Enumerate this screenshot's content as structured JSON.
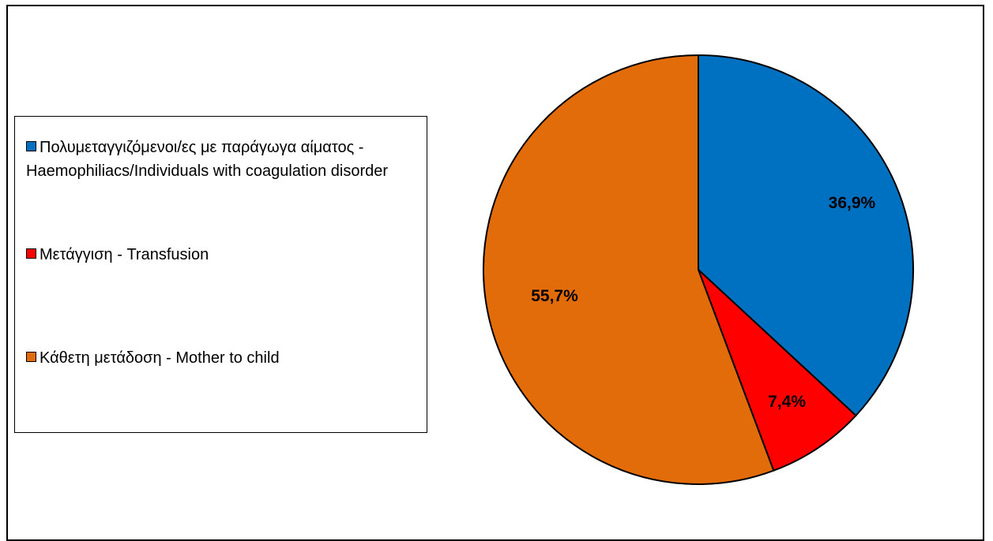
{
  "chart_data": {
    "type": "pie",
    "title": "",
    "categories": [
      "Πολυμεταγγιζόμενοι/ες με παράγωγα αίματος - Haemophiliacs/Individuals with coagulation disorder",
      "Μετάγγιση - Transfusion",
      "Κάθετη μετάδοση - Mother to child"
    ],
    "values": [
      36.9,
      7.4,
      55.7
    ],
    "data_labels": [
      "36,9%",
      "7,4%",
      "55,7%"
    ],
    "colors": [
      "#0070c0",
      "#ff0000",
      "#e36c0a"
    ],
    "legend_position": "left"
  }
}
